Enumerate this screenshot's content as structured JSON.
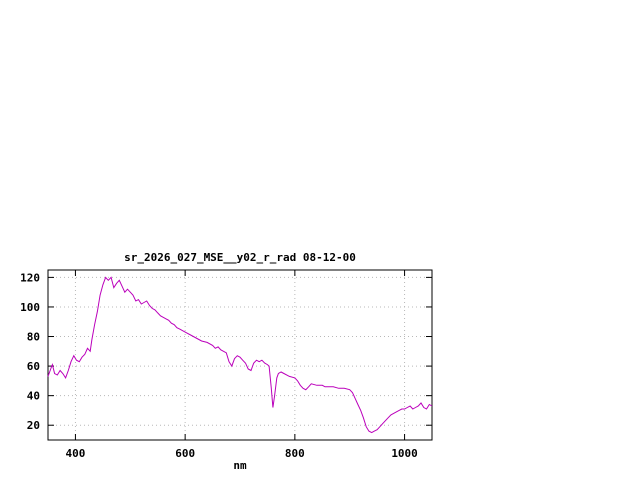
{
  "chart_data": {
    "type": "line",
    "title": "sr_2026_027_MSE__y02_r_rad 08-12-00",
    "xlabel": "nm",
    "ylabel": "",
    "xlim": [
      350,
      1050
    ],
    "ylim": [
      10,
      125
    ],
    "xticks": [
      400,
      600,
      800,
      1000
    ],
    "yticks": [
      20,
      40,
      60,
      80,
      100,
      120
    ],
    "grid": true,
    "legend": "none",
    "line_color": "#bb00bb",
    "grid_color": "#b8b8b8",
    "border_color": "#000000",
    "series": [
      {
        "name": "sr_2026_027_MSE__y02_r_rad",
        "x": [
          350,
          355,
          358,
          362,
          367,
          372,
          377,
          382,
          387,
          392,
          397,
          402,
          407,
          412,
          417,
          422,
          427,
          430,
          435,
          440,
          445,
          450,
          455,
          460,
          465,
          470,
          475,
          480,
          485,
          490,
          495,
          500,
          505,
          510,
          515,
          520,
          525,
          530,
          535,
          540,
          545,
          550,
          555,
          560,
          565,
          570,
          575,
          580,
          585,
          590,
          595,
          600,
          610,
          620,
          630,
          640,
          650,
          655,
          660,
          665,
          670,
          675,
          680,
          685,
          690,
          695,
          700,
          705,
          710,
          715,
          720,
          725,
          730,
          735,
          740,
          745,
          750,
          753,
          757,
          760,
          763,
          767,
          770,
          775,
          780,
          790,
          800,
          805,
          810,
          815,
          820,
          825,
          830,
          840,
          850,
          855,
          860,
          870,
          880,
          890,
          900,
          905,
          910,
          915,
          920,
          925,
          930,
          935,
          940,
          945,
          950,
          955,
          960,
          970,
          975,
          980,
          985,
          990,
          995,
          1000,
          1005,
          1010,
          1015,
          1020,
          1025,
          1030,
          1035,
          1040,
          1045,
          1050
        ],
        "y": [
          53,
          58,
          61,
          55,
          54,
          57,
          55,
          52,
          57,
          63,
          67,
          64,
          63,
          66,
          68,
          72,
          70,
          78,
          88,
          97,
          108,
          115,
          120,
          118,
          120,
          113,
          116,
          118,
          114,
          110,
          112,
          110,
          108,
          104,
          105,
          102,
          103,
          104,
          101,
          99,
          98,
          96,
          94,
          93,
          92,
          91,
          89,
          88,
          86,
          85,
          84,
          83,
          81,
          79,
          77,
          76,
          74,
          72,
          73,
          71,
          70,
          69,
          63,
          60,
          65,
          67,
          66,
          64,
          62,
          58,
          57,
          62,
          64,
          63,
          64,
          62,
          61,
          60,
          45,
          32,
          40,
          52,
          55,
          56,
          55,
          53,
          52,
          50,
          47,
          45,
          44,
          46,
          48,
          47,
          47,
          46,
          46,
          46,
          45,
          45,
          44,
          42,
          38,
          34,
          30,
          25,
          19,
          16,
          15,
          16,
          17,
          19,
          21,
          25,
          27,
          28,
          29,
          30,
          31,
          31,
          32,
          33,
          31,
          32,
          33,
          35,
          32,
          31,
          34,
          33
        ]
      }
    ]
  }
}
